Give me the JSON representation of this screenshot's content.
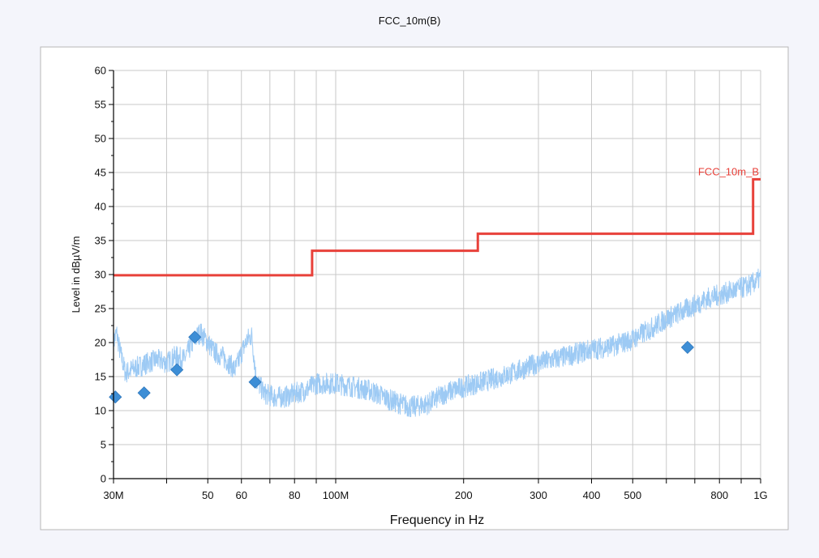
{
  "chart_data": {
    "type": "line",
    "title": "FCC_10m(B)",
    "xlabel": "Frequency in Hz",
    "ylabel": "Level in dBµV/m",
    "x_scale": "log",
    "xlim": [
      30000000,
      1000000000
    ],
    "ylim": [
      0,
      60
    ],
    "grid": true,
    "x_ticks": [
      {
        "value": 30000000,
        "label": "30M"
      },
      {
        "value": 40000000,
        "label": ""
      },
      {
        "value": 50000000,
        "label": "50"
      },
      {
        "value": 60000000,
        "label": "60"
      },
      {
        "value": 70000000,
        "label": ""
      },
      {
        "value": 80000000,
        "label": "80"
      },
      {
        "value": 90000000,
        "label": ""
      },
      {
        "value": 100000000,
        "label": "100M"
      },
      {
        "value": 200000000,
        "label": "200"
      },
      {
        "value": 300000000,
        "label": "300"
      },
      {
        "value": 400000000,
        "label": "400"
      },
      {
        "value": 500000000,
        "label": "500"
      },
      {
        "value": 600000000,
        "label": ""
      },
      {
        "value": 700000000,
        "label": ""
      },
      {
        "value": 800000000,
        "label": "800"
      },
      {
        "value": 900000000,
        "label": ""
      },
      {
        "value": 1000000000,
        "label": "1G"
      }
    ],
    "y_ticks": [
      0,
      5,
      10,
      15,
      20,
      25,
      30,
      35,
      40,
      45,
      50,
      55,
      60
    ],
    "series": [
      {
        "name": "FCC_10m_B",
        "kind": "limit",
        "color": "#e8413a",
        "x": [
          30000000,
          88000000,
          88000000,
          216000000,
          216000000,
          960000000,
          960000000,
          1000000000
        ],
        "y": [
          29.9,
          29.9,
          33.5,
          33.5,
          36.0,
          36.0,
          44.0,
          44.0
        ]
      },
      {
        "kind": "trace",
        "color": "#9dcaf4",
        "noise": 1.6,
        "x": [
          30000000,
          30500000,
          31000000,
          32000000,
          33000000,
          34500000,
          36000000,
          38000000,
          40000000,
          42000000,
          44000000,
          46000000,
          48000000,
          50000000,
          52000000,
          54000000,
          56000000,
          58000000,
          60000000,
          62000000,
          63500000,
          65000000,
          68000000,
          72000000,
          76000000,
          80000000,
          85000000,
          90000000,
          95000000,
          100000000,
          110000000,
          120000000,
          135000000,
          150000000,
          165000000,
          180000000,
          200000000,
          230000000,
          260000000,
          300000000,
          350000000,
          400000000,
          450000000,
          500000000,
          550000000,
          600000000,
          650000000,
          700000000,
          750000000,
          800000000,
          850000000,
          900000000,
          950000000,
          1000000000
        ],
        "y": [
          20.0,
          21.5,
          19.0,
          15.5,
          16.0,
          16.5,
          17.0,
          17.5,
          17.0,
          18.0,
          17.5,
          20.0,
          21.5,
          20.0,
          18.5,
          18.0,
          17.0,
          16.0,
          18.5,
          20.5,
          21.0,
          14.5,
          12.5,
          12.0,
          12.0,
          12.5,
          13.0,
          14.0,
          14.0,
          14.0,
          13.5,
          13.0,
          11.5,
          10.5,
          11.0,
          12.5,
          13.5,
          14.5,
          15.5,
          17.0,
          18.0,
          19.0,
          19.5,
          20.5,
          22.0,
          23.5,
          24.5,
          25.5,
          26.5,
          27.0,
          27.5,
          28.0,
          28.5,
          29.5
        ]
      },
      {
        "kind": "measured",
        "marker": "diamond",
        "color": "#3d8ed6",
        "x": [
          30300000,
          35400000,
          42300000,
          46600000,
          64600000,
          673000000
        ],
        "y": [
          12.0,
          12.6,
          16.0,
          20.8,
          14.2,
          19.3
        ]
      }
    ]
  }
}
